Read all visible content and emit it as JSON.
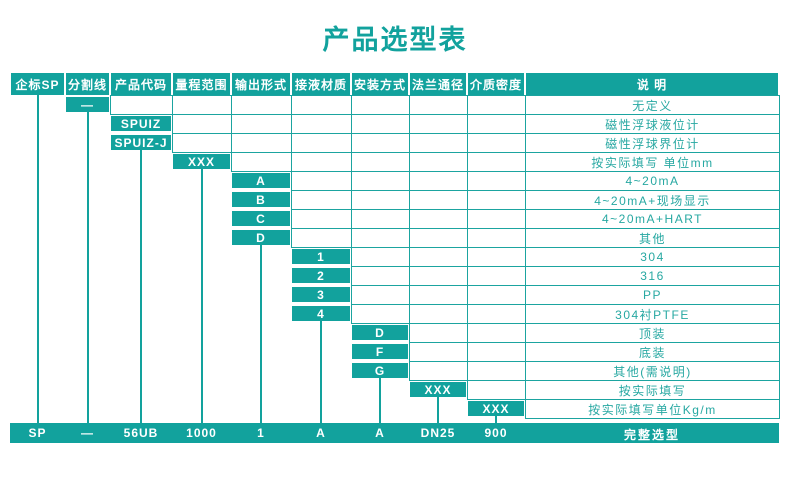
{
  "title": "产品选型表",
  "colors": {
    "accent": "#12A29D",
    "desc_text": "#27A8A2",
    "cell_border": "#1BA4A0",
    "white": "#FFFFFF"
  },
  "header": {
    "columns": [
      "企标SP",
      "分割线",
      "产品代码",
      "量程范围",
      "输出形式",
      "接液材质",
      "安装方式",
      "法兰通径",
      "介质密度",
      "说  明"
    ]
  },
  "rows": [
    {
      "col": 1,
      "code": "—",
      "desc": "无定义"
    },
    {
      "col": 2,
      "code": "SPUIZ",
      "desc": "磁性浮球液位计"
    },
    {
      "col": 2,
      "code": "SPUIZ-J",
      "desc": "磁性浮球界位计"
    },
    {
      "col": 3,
      "code": "XXX",
      "desc": "按实际填写 单位mm"
    },
    {
      "col": 4,
      "code": "A",
      "desc": "4~20mA"
    },
    {
      "col": 4,
      "code": "B",
      "desc": "4~20mA+现场显示"
    },
    {
      "col": 4,
      "code": "C",
      "desc": "4~20mA+HART"
    },
    {
      "col": 4,
      "code": "D",
      "desc": "其他"
    },
    {
      "col": 5,
      "code": "1",
      "desc": "304"
    },
    {
      "col": 5,
      "code": "2",
      "desc": "316"
    },
    {
      "col": 5,
      "code": "3",
      "desc": "PP"
    },
    {
      "col": 5,
      "code": "4",
      "desc": "304衬PTFE"
    },
    {
      "col": 6,
      "code": "D",
      "desc": "顶装"
    },
    {
      "col": 6,
      "code": "F",
      "desc": "底装"
    },
    {
      "col": 6,
      "code": "G",
      "desc": "其他(需说明)"
    },
    {
      "col": 7,
      "code": "XXX",
      "desc": "按实际填写"
    },
    {
      "col": 8,
      "code": "XXX",
      "desc": "按实际填写单位Kg/m"
    }
  ],
  "summary": {
    "values": [
      "SP",
      "—",
      "56UB",
      "1000",
      "1",
      "A",
      "A",
      "DN25",
      "900"
    ],
    "label": "完整选型"
  }
}
